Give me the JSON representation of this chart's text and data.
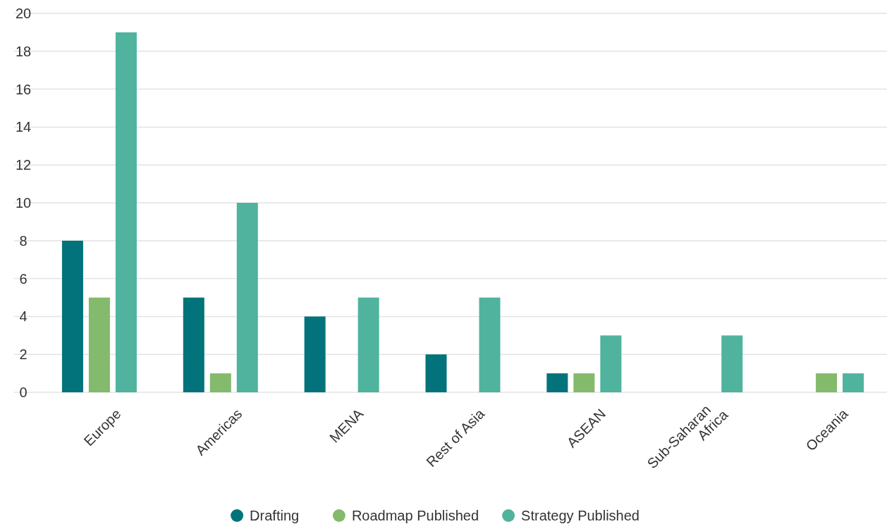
{
  "chart_data": {
    "type": "bar",
    "categories": [
      "Europe",
      "Americas",
      "MENA",
      "Rest of Asia",
      "ASEAN",
      "Sub-Saharan Africa",
      "Oceania"
    ],
    "series": [
      {
        "name": "Drafting",
        "color": "#02737a",
        "values": [
          8,
          5,
          4,
          2,
          1,
          0,
          0
        ]
      },
      {
        "name": "Roadmap Published",
        "color": "#84ba6b",
        "values": [
          5,
          1,
          0,
          0,
          1,
          0,
          1
        ]
      },
      {
        "name": "Strategy Published",
        "color": "#4fb39e",
        "values": [
          19,
          10,
          5,
          5,
          3,
          3,
          1
        ]
      }
    ],
    "ylim": [
      0,
      20
    ],
    "yticks": [
      0,
      2,
      4,
      6,
      8,
      10,
      12,
      14,
      16,
      18,
      20
    ],
    "grid": "y",
    "legend": "bottom"
  }
}
